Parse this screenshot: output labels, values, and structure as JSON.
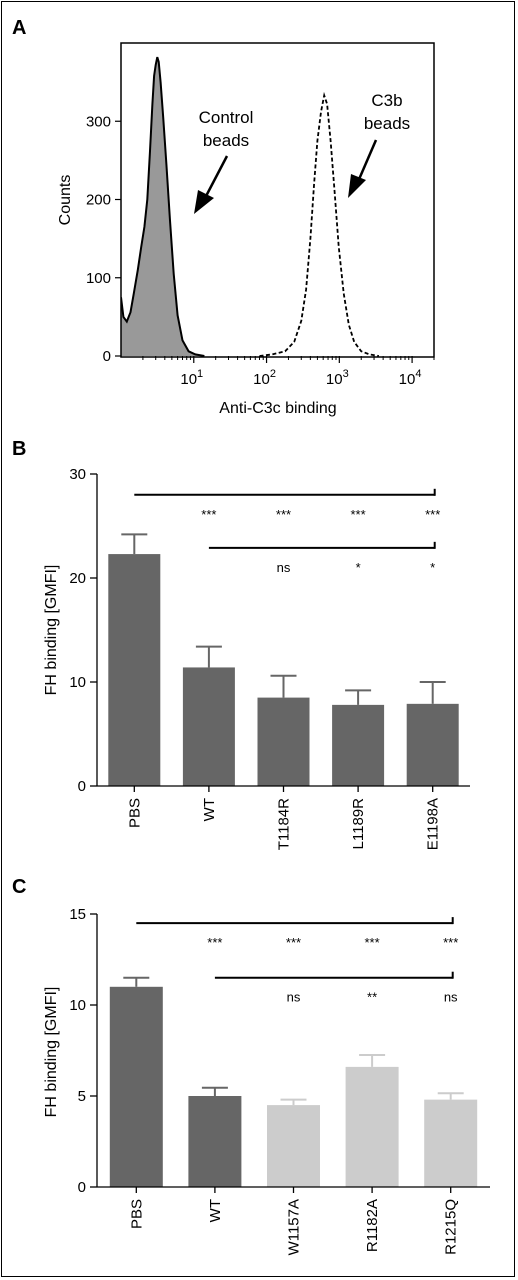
{
  "panels": [
    {
      "letter": "A"
    },
    {
      "letter": "B"
    },
    {
      "letter": "C"
    }
  ],
  "chart_data": [
    {
      "type": "area",
      "panel": "A",
      "xlabel": "Anti-C3c binding",
      "ylabel": "Counts",
      "x_scale": "log",
      "xlim": [
        1,
        20000
      ],
      "ylim": [
        0,
        400
      ],
      "x_ticks": [
        {
          "value": 10,
          "base": "10",
          "exp": "1"
        },
        {
          "value": 100,
          "base": "10",
          "exp": "2"
        },
        {
          "value": 1000,
          "base": "10",
          "exp": "3"
        },
        {
          "value": 10000,
          "base": "10",
          "exp": "4"
        }
      ],
      "y_ticks": [
        0,
        100,
        200,
        300
      ],
      "annotations": [
        {
          "lines": [
            "Control",
            "beads"
          ]
        },
        {
          "lines": [
            "C3b",
            "beads"
          ]
        }
      ],
      "series": [
        {
          "style": "filled-solid",
          "fill": "#999999",
          "points": [
            [
              1.0,
              75
            ],
            [
              1.08,
              50
            ],
            [
              1.2,
              44
            ],
            [
              1.35,
              56
            ],
            [
              1.5,
              80
            ],
            [
              1.7,
              110
            ],
            [
              1.9,
              140
            ],
            [
              2.1,
              165
            ],
            [
              2.3,
              200
            ],
            [
              2.5,
              262
            ],
            [
              2.7,
              322
            ],
            [
              2.85,
              358
            ],
            [
              3.0,
              372
            ],
            [
              3.15,
              382
            ],
            [
              3.3,
              376
            ],
            [
              3.5,
              350
            ],
            [
              3.8,
              305
            ],
            [
              4.2,
              245
            ],
            [
              4.7,
              175
            ],
            [
              5.3,
              105
            ],
            [
              6.0,
              52
            ],
            [
              7.0,
              20
            ],
            [
              8.5,
              6
            ],
            [
              10.5,
              2
            ],
            [
              14,
              0
            ]
          ]
        },
        {
          "style": "dashed-line",
          "points": [
            [
              80,
              0
            ],
            [
              120,
              2
            ],
            [
              180,
              6
            ],
            [
              240,
              18
            ],
            [
              300,
              45
            ],
            [
              350,
              85
            ],
            [
              400,
              150
            ],
            [
              450,
              220
            ],
            [
              500,
              275
            ],
            [
              560,
              312
            ],
            [
              620,
              333
            ],
            [
              680,
              322
            ],
            [
              760,
              275
            ],
            [
              860,
              210
            ],
            [
              980,
              140
            ],
            [
              1150,
              80
            ],
            [
              1350,
              40
            ],
            [
              1600,
              18
            ],
            [
              2000,
              6
            ],
            [
              2600,
              2
            ],
            [
              3500,
              0
            ]
          ]
        }
      ]
    },
    {
      "type": "bar",
      "panel": "B",
      "ylabel": "FH binding [GMFI]",
      "ylim": [
        0,
        30
      ],
      "y_ticks": [
        0,
        10,
        20,
        30
      ],
      "categories": [
        "PBS",
        "WT",
        "T1184R",
        "L1189R",
        "E1198A"
      ],
      "values": [
        22.3,
        11.4,
        8.5,
        7.8,
        7.9
      ],
      "errors": [
        1.9,
        2.0,
        2.1,
        1.4,
        2.1
      ],
      "colors": [
        "#666666",
        "#666666",
        "#666666",
        "#666666",
        "#666666"
      ],
      "comparisons": [
        {
          "from": "PBS",
          "y": 28.0,
          "labels": [
            "",
            "***",
            "***",
            "***",
            "***"
          ]
        },
        {
          "from": "WT",
          "y": 22.9,
          "labels": [
            "",
            "",
            "ns",
            "*",
            "*"
          ]
        }
      ]
    },
    {
      "type": "bar",
      "panel": "C",
      "ylabel": "FH binding [GMFI]",
      "ylim": [
        0,
        15
      ],
      "y_ticks": [
        0,
        5,
        10,
        15
      ],
      "categories": [
        "PBS",
        "WT",
        "W1157A",
        "R1182A",
        "R1215Q"
      ],
      "values": [
        11.0,
        5.0,
        4.5,
        6.6,
        4.8
      ],
      "errors": [
        0.5,
        0.45,
        0.3,
        0.65,
        0.35
      ],
      "colors": [
        "#666666",
        "#666666",
        "#cccccc",
        "#cccccc",
        "#cccccc"
      ],
      "comparisons": [
        {
          "from": "PBS",
          "y": 14.5,
          "labels": [
            "",
            "***",
            "***",
            "***",
            "***"
          ]
        },
        {
          "from": "WT",
          "y": 11.5,
          "labels": [
            "",
            "",
            "ns",
            "**",
            "ns"
          ]
        }
      ]
    }
  ]
}
